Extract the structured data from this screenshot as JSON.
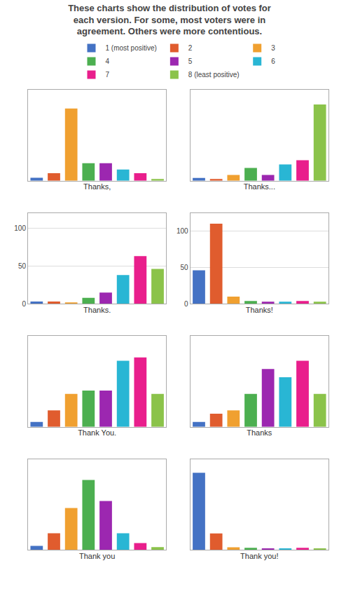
{
  "title": "These charts show the distribution of votes for\neach version. For some, most voters were in\nagreement. Others were more contentious.",
  "chart_data": [
    {
      "type": "bar",
      "xlabel": "Thanks,",
      "categories": [
        "1 (most positive)",
        "2",
        "3",
        "4",
        "5",
        "6",
        "7",
        "8 (least positive)"
      ],
      "values": [
        5,
        12,
        115,
        28,
        28,
        18,
        12,
        3
      ],
      "colors": [
        "#4472C4",
        "#E05C2E",
        "#F0A030",
        "#4CAF50",
        "#9C27B0",
        "#29B6D4",
        "#E91E8C",
        "#8BC34A"
      ],
      "ylim": [
        0,
        145
      ],
      "yticks": [],
      "grid": false,
      "tick_labels": false,
      "legend": "top"
    },
    {
      "type": "bar",
      "xlabel": "Thanks...",
      "categories": [
        "1 (most positive)",
        "2",
        "3",
        "4",
        "5",
        "6",
        "7",
        "8 (least positive)"
      ],
      "values": [
        5,
        3,
        10,
        22,
        10,
        28,
        35,
        130
      ],
      "colors": [
        "#4472C4",
        "#E05C2E",
        "#F0A030",
        "#4CAF50",
        "#9C27B0",
        "#29B6D4",
        "#E91E8C",
        "#8BC34A"
      ],
      "ylim": [
        0,
        155
      ],
      "yticks": [],
      "grid": false,
      "tick_labels": false
    },
    {
      "type": "bar",
      "xlabel": "Thanks.",
      "categories": [
        "1 (most positive)",
        "2",
        "3",
        "4",
        "5",
        "6",
        "7",
        "8 (least positive)"
      ],
      "values": [
        3,
        3,
        2,
        8,
        15,
        38,
        63,
        46
      ],
      "colors": [
        "#4472C4",
        "#E05C2E",
        "#F0A030",
        "#4CAF50",
        "#9C27B0",
        "#29B6D4",
        "#E91E8C",
        "#8BC34A"
      ],
      "ylim": [
        0,
        120
      ],
      "yticks": [
        0,
        50,
        100
      ],
      "grid": true,
      "tick_labels": "y"
    },
    {
      "type": "bar",
      "xlabel": "Thanks!",
      "categories": [
        "1 (most positive)",
        "2",
        "3",
        "4",
        "5",
        "6",
        "7",
        "8 (least positive)"
      ],
      "values": [
        46,
        110,
        10,
        4,
        3,
        3,
        4,
        3
      ],
      "colors": [
        "#4472C4",
        "#E05C2E",
        "#F0A030",
        "#4CAF50",
        "#9C27B0",
        "#29B6D4",
        "#E91E8C",
        "#8BC34A"
      ],
      "ylim": [
        0,
        125
      ],
      "yticks": [
        0,
        50,
        100
      ],
      "grid": true,
      "tick_labels": "y"
    },
    {
      "type": "bar",
      "xlabel": "Thank You.",
      "categories": [
        "1 (most positive)",
        "2",
        "3",
        "4",
        "5",
        "6",
        "7",
        "8 (least positive)"
      ],
      "values": [
        3,
        10,
        20,
        22,
        22,
        40,
        42,
        20
      ],
      "colors": [
        "#4472C4",
        "#E05C2E",
        "#F0A030",
        "#4CAF50",
        "#9C27B0",
        "#29B6D4",
        "#E91E8C",
        "#8BC34A"
      ],
      "ylim": [
        0,
        55
      ],
      "yticks": [],
      "grid": false,
      "tick_labels": false
    },
    {
      "type": "bar",
      "xlabel": "Thanks",
      "categories": [
        "1 (most positive)",
        "2",
        "3",
        "4",
        "5",
        "6",
        "7",
        "8 (least positive)"
      ],
      "values": [
        3,
        8,
        10,
        20,
        35,
        30,
        40,
        20
      ],
      "colors": [
        "#4472C4",
        "#E05C2E",
        "#F0A030",
        "#4CAF50",
        "#9C27B0",
        "#29B6D4",
        "#E91E8C",
        "#8BC34A"
      ],
      "ylim": [
        0,
        55
      ],
      "yticks": [],
      "grid": false,
      "tick_labels": false
    },
    {
      "type": "bar",
      "xlabel": "Thank you",
      "categories": [
        "1 (most positive)",
        "2",
        "3",
        "4",
        "5",
        "6",
        "7",
        "8 (least positive)"
      ],
      "values": [
        3,
        12,
        30,
        50,
        35,
        12,
        5,
        2
      ],
      "colors": [
        "#4472C4",
        "#E05C2E",
        "#F0A030",
        "#4CAF50",
        "#9C27B0",
        "#29B6D4",
        "#E91E8C",
        "#8BC34A"
      ],
      "ylim": [
        0,
        65
      ],
      "yticks": [],
      "grid": false,
      "tick_labels": false
    },
    {
      "type": "bar",
      "xlabel": "Thank you!",
      "categories": [
        "1 (most positive)",
        "2",
        "3",
        "4",
        "5",
        "6",
        "7",
        "8 (least positive)"
      ],
      "values": [
        140,
        30,
        5,
        4,
        3,
        3,
        4,
        3
      ],
      "colors": [
        "#4472C4",
        "#E05C2E",
        "#F0A030",
        "#4CAF50",
        "#9C27B0",
        "#29B6D4",
        "#E91E8C",
        "#8BC34A"
      ],
      "ylim": [
        0,
        165
      ],
      "yticks": [],
      "grid": false,
      "tick_labels": false
    }
  ]
}
